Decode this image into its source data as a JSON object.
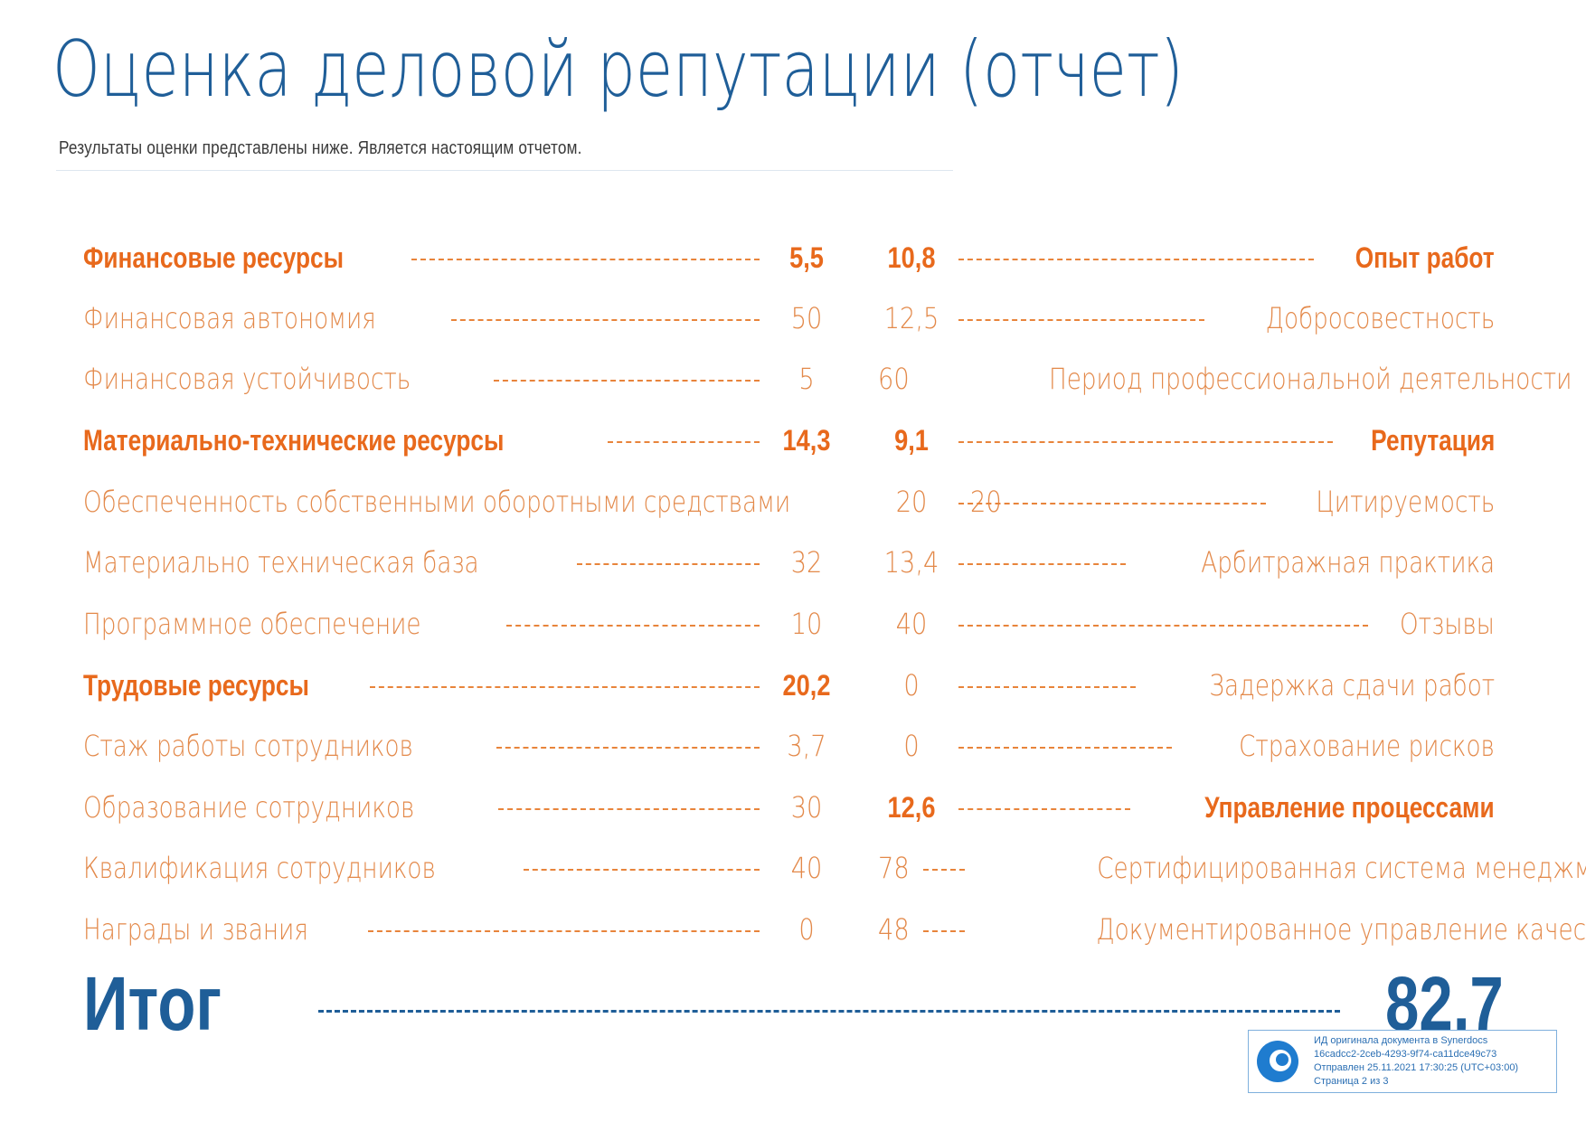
{
  "title": "Оценка деловой репутации (отчет)",
  "subtitle": "Результаты оценки представлены ниже. Является настоящим отчетом.",
  "colors": {
    "accent_orange": "#e8691c",
    "accent_blue": "#1f5e98"
  },
  "left": [
    {
      "label": "Финансовые ресурсы",
      "value": "5,5"
    },
    {
      "label": "Финансовая автономия",
      "value": "50"
    },
    {
      "label": "Финансовая устойчивость",
      "value": "5"
    },
    {
      "label": "Материально-технические ресурсы",
      "value": "14,3"
    },
    {
      "label": "Обеспеченность собственными оборотными средствами",
      "value": "20"
    },
    {
      "label": "Материально техническая база",
      "value": "32"
    },
    {
      "label": "Программное обеспечение",
      "value": "10"
    },
    {
      "label": "Трудовые ресурсы",
      "value": "20,2"
    },
    {
      "label": "Стаж работы сотрудников",
      "value": "3,7"
    },
    {
      "label": "Образование сотрудников",
      "value": "30"
    },
    {
      "label": "Квалификация сотрудников",
      "value": "40"
    },
    {
      "label": "Награды и звания",
      "value": "0"
    }
  ],
  "right": [
    {
      "label": "Опыт работ",
      "value": "10,8"
    },
    {
      "label": "Добросовестность",
      "value": "12,5"
    },
    {
      "label": "Период профессиональной деятельности",
      "value": "60"
    },
    {
      "label": "Репутация",
      "value": "9,1"
    },
    {
      "label": "Цитируемость",
      "value": "20"
    },
    {
      "label": "Арбитражная практика",
      "value": "13,4"
    },
    {
      "label": "Отзывы",
      "value": "40"
    },
    {
      "label": "Задержка сдачи работ",
      "value": "0"
    },
    {
      "label": "Страхование рисков",
      "value": "0"
    },
    {
      "label": "Управление процессами",
      "value": "12,6"
    },
    {
      "label": "Сертифицированная система менеджмента",
      "value": "78"
    },
    {
      "label": "Документированное управление качеством",
      "value": "48"
    }
  ],
  "total": {
    "label": "Итог",
    "value": "82,7"
  },
  "stamp": {
    "line1": "ИД оригинала документа в Synerdocs",
    "line2": "16cadcc2-2ceb-4293-9f74-ca11dce49c73",
    "line3": "Отправлен 25.11.2021 17:30:25 (UTC+03:00)",
    "line4": "Страница 2 из 3"
  }
}
